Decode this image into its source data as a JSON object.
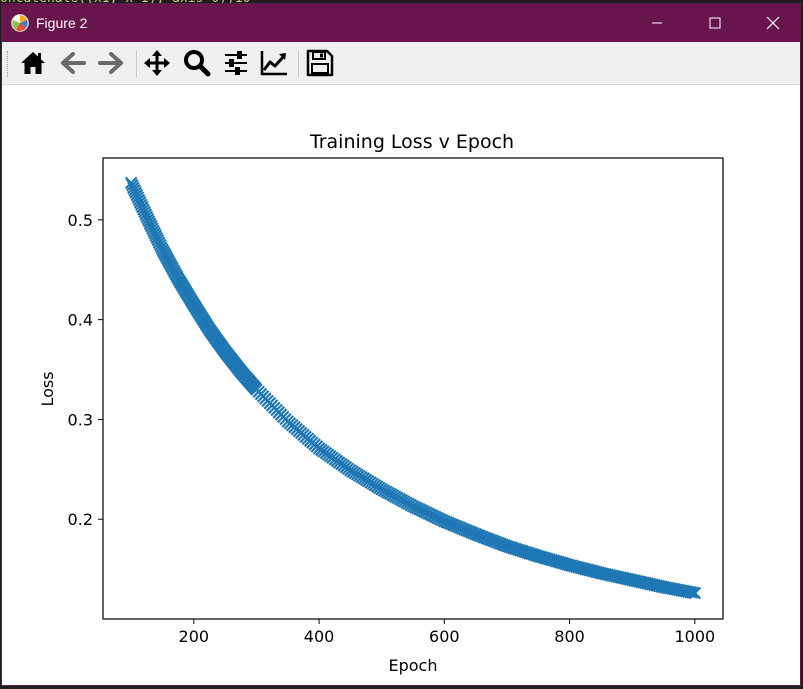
{
  "window": {
    "title": "Figure 2",
    "controls": [
      "minimize",
      "maximize",
      "close"
    ]
  },
  "toolbar": {
    "buttons": [
      {
        "name": "home",
        "icon": "home-icon"
      },
      {
        "name": "back",
        "icon": "arrow-left-icon"
      },
      {
        "name": "forward",
        "icon": "arrow-right-icon"
      },
      {
        "name": "pan",
        "icon": "move-icon"
      },
      {
        "name": "zoom",
        "icon": "magnifier-icon"
      },
      {
        "name": "subplots",
        "icon": "sliders-icon"
      },
      {
        "name": "edit-axes",
        "icon": "chart-line-icon"
      },
      {
        "name": "save",
        "icon": "floppy-disk-icon"
      }
    ]
  },
  "colors": {
    "titlebar": "#68144d",
    "series": "#1f77b4",
    "toolbar_bg": "#f0f0f0"
  },
  "chart_data": {
    "type": "scatter",
    "title": "Training Loss v Epoch",
    "xlabel": "Epoch",
    "ylabel": "Loss",
    "xlim": [
      55,
      1045
    ],
    "ylim": [
      0.1,
      0.562
    ],
    "xticks": [
      200,
      400,
      600,
      800,
      1000
    ],
    "xtick_labels": [
      "200",
      "400",
      "600",
      "800",
      "1000"
    ],
    "yticks": [
      0.2,
      0.3,
      0.4,
      0.5
    ],
    "ytick_labels": [
      "0.2",
      "0.3",
      "0.4",
      "0.5"
    ],
    "grid": false,
    "marker": "x",
    "series": [
      {
        "x": [
          100,
          125,
          150,
          175,
          200,
          225,
          250,
          275,
          300,
          350,
          400,
          450,
          500,
          550,
          600,
          650,
          700,
          750,
          800,
          850,
          900,
          950,
          1000
        ],
        "y": [
          0.537,
          0.503,
          0.47,
          0.441,
          0.415,
          0.39,
          0.368,
          0.348,
          0.33,
          0.298,
          0.271,
          0.249,
          0.23,
          0.213,
          0.198,
          0.185,
          0.173,
          0.163,
          0.154,
          0.146,
          0.139,
          0.132,
          0.126
        ]
      }
    ]
  }
}
